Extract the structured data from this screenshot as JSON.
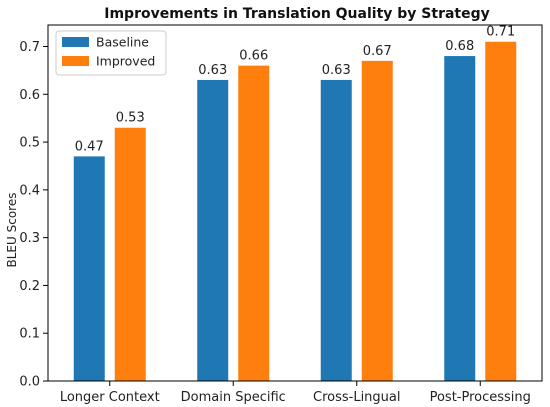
{
  "chart_data": {
    "type": "bar",
    "title": "Improvements in Translation Quality by Strategy",
    "xlabel": "",
    "ylabel": "BLEU Scores",
    "categories": [
      "Longer Context",
      "Domain Specific",
      "Cross-Lingual",
      "Post-Processing"
    ],
    "series": [
      {
        "name": "Baseline",
        "values": [
          0.47,
          0.63,
          0.63,
          0.68
        ],
        "labels": [
          "0.47",
          "0.63",
          "0.63",
          "0.68"
        ],
        "color": "#1f77b4"
      },
      {
        "name": "Improved",
        "values": [
          0.53,
          0.66,
          0.67,
          0.71
        ],
        "labels": [
          "0.53",
          "0.66",
          "0.67",
          "0.71"
        ],
        "color": "#ff7f0e"
      }
    ],
    "ylim": [
      0,
      0.745
    ],
    "yticks": [
      "0.0",
      "0.1",
      "0.2",
      "0.3",
      "0.4",
      "0.5",
      "0.6",
      "0.7"
    ],
    "grid": false,
    "legend": "top-left"
  }
}
